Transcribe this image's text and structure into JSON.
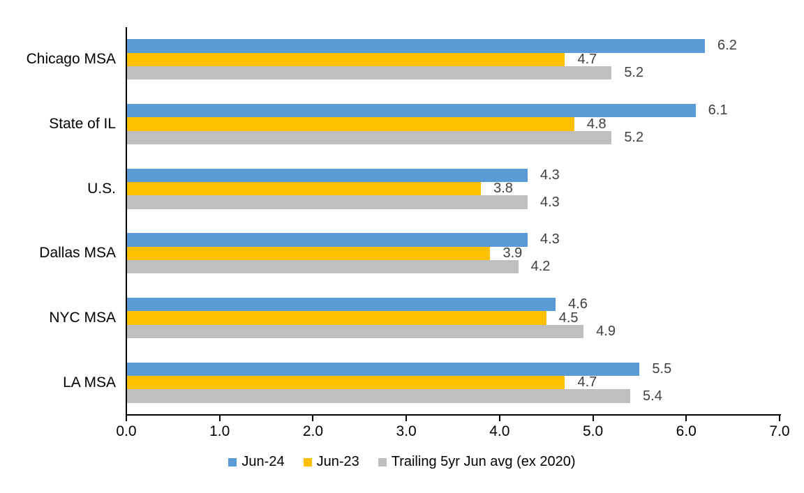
{
  "chart_data": {
    "type": "bar",
    "orientation": "horizontal",
    "title": "",
    "xlabel": "",
    "ylabel": "",
    "categories": [
      "Chicago MSA",
      "State of IL",
      "U.S.",
      "Dallas MSA",
      "NYC MSA",
      "LA MSA"
    ],
    "series": [
      {
        "name": "Jun-24",
        "color": "#5B9BD5",
        "values": [
          6.2,
          6.1,
          4.3,
          4.3,
          4.6,
          5.5
        ]
      },
      {
        "name": "Jun-23",
        "color": "#FFC000",
        "values": [
          4.7,
          4.8,
          3.8,
          3.9,
          4.5,
          4.7
        ]
      },
      {
        "name": "Trailing 5yr Jun avg (ex 2020)",
        "color": "#BFBFBF",
        "values": [
          5.2,
          5.2,
          4.3,
          4.2,
          4.9,
          5.4
        ]
      }
    ],
    "xlim": [
      0,
      7
    ],
    "x_ticks": [
      "0.0",
      "1.0",
      "2.0",
      "3.0",
      "4.0",
      "5.0",
      "6.0",
      "7.0"
    ],
    "value_label_decimals": 1,
    "grid": false,
    "legend_position": "bottom"
  },
  "colors": {
    "axis": "#000000",
    "category_label": "#000000",
    "data_label": "#404040",
    "background": "#FFFFFF"
  }
}
